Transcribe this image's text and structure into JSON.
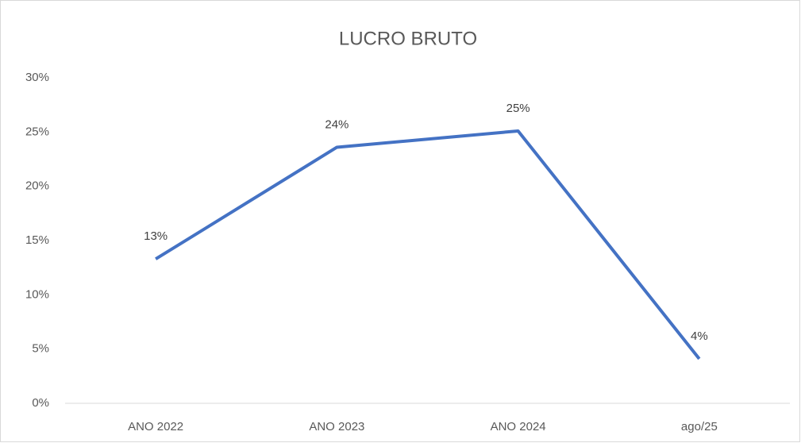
{
  "chart_data": {
    "type": "line",
    "title": "LUCRO BRUTO",
    "categories": [
      "ANO 2022",
      "ANO 2023",
      "ANO 2024",
      "ago/25"
    ],
    "series": [
      {
        "name": "LUCRO BRUTO",
        "color": "#4472c4",
        "values": [
          13.3,
          23.6,
          25.1,
          4.1
        ],
        "value_labels": [
          "13%",
          "24%",
          "25%",
          "4%"
        ]
      }
    ],
    "ylim": [
      0,
      30
    ],
    "yticks": [
      {
        "value": 0,
        "label": "0%"
      },
      {
        "value": 5,
        "label": "5%"
      },
      {
        "value": 10,
        "label": "10%"
      },
      {
        "value": 15,
        "label": "15%"
      },
      {
        "value": 20,
        "label": "20%"
      },
      {
        "value": 25,
        "label": "25%"
      },
      {
        "value": 30,
        "label": "30%"
      }
    ],
    "grid": false
  }
}
